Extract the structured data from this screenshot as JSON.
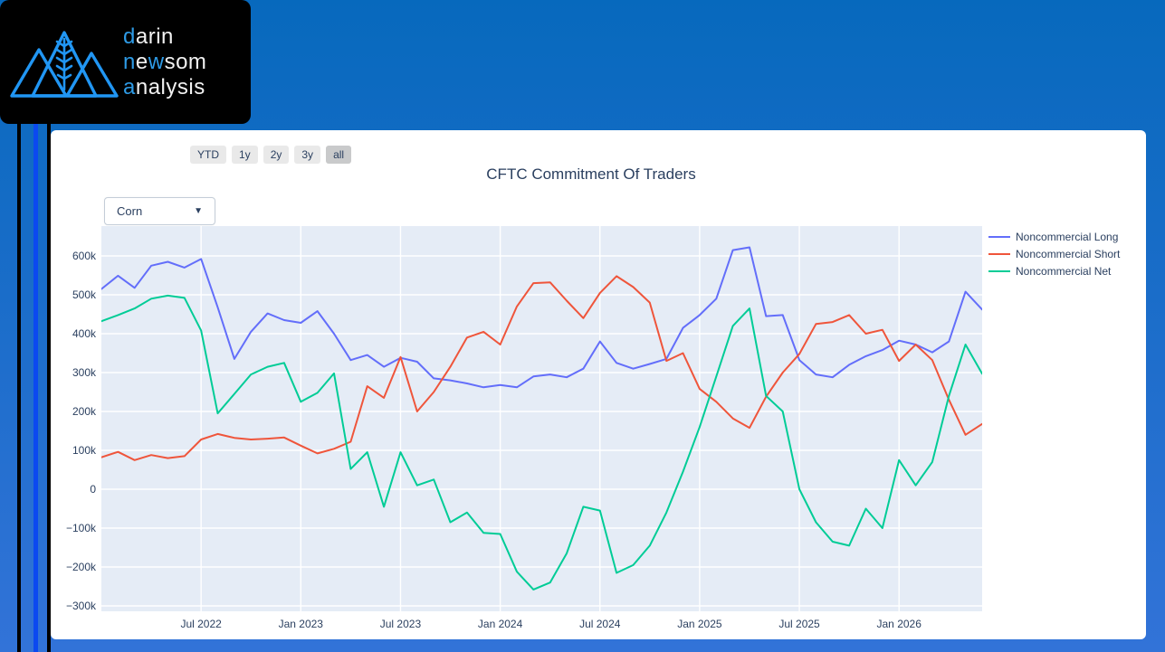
{
  "page": {
    "background_top": "#0769bd",
    "background_bottom": "#3273d8",
    "accent_stripe": "#0b49f0"
  },
  "logo": {
    "lines": [
      {
        "segments": [
          {
            "text": "d",
            "cls": "accent"
          },
          {
            "text": "arin",
            "cls": "white"
          }
        ]
      },
      {
        "segments": [
          {
            "text": "n",
            "cls": "accent"
          },
          {
            "text": "e",
            "cls": "white"
          },
          {
            "text": "w",
            "cls": "accent"
          },
          {
            "text": "som",
            "cls": "white"
          }
        ]
      },
      {
        "segments": [
          {
            "text": "a",
            "cls": "accent"
          },
          {
            "text": "nalysis",
            "cls": "white"
          }
        ]
      }
    ],
    "mark_color": "#2196f3"
  },
  "range_selector": {
    "buttons": [
      "YTD",
      "1y",
      "2y",
      "3y",
      "all"
    ],
    "active_index": 4
  },
  "dropdown": {
    "value": "Corn",
    "arrow": "▼"
  },
  "chart_data": {
    "type": "line",
    "title": "CFTC Commitment Of Traders",
    "xlabel": "",
    "ylabel": "",
    "grid": true,
    "legend_position": "right",
    "plot_bg": "#e5ecf6",
    "text_color": "#2a3f5f",
    "ylim": [
      -314,
      677
    ],
    "x_months": [
      "2022-01",
      "2022-02",
      "2022-03",
      "2022-04",
      "2022-05",
      "2022-06",
      "2022-07",
      "2022-08",
      "2022-09",
      "2022-10",
      "2022-11",
      "2022-12",
      "2023-01",
      "2023-02",
      "2023-03",
      "2023-04",
      "2023-05",
      "2023-06",
      "2023-07",
      "2023-08",
      "2023-09",
      "2023-10",
      "2023-11",
      "2023-12",
      "2024-01",
      "2024-02",
      "2024-03",
      "2024-04",
      "2024-05",
      "2024-06",
      "2024-07",
      "2024-08",
      "2024-09",
      "2024-10",
      "2024-11",
      "2024-12",
      "2025-01",
      "2025-02",
      "2025-03",
      "2025-04",
      "2025-05",
      "2025-06",
      "2025-07",
      "2025-08",
      "2025-09",
      "2025-10",
      "2025-11",
      "2025-12",
      "2026-01",
      "2026-02",
      "2026-03",
      "2026-04",
      "2026-05",
      "2026-06"
    ],
    "x_ticks": [
      {
        "label": "Jul 2022",
        "month_index": 6
      },
      {
        "label": "Jan 2023",
        "month_index": 12
      },
      {
        "label": "Jul 2023",
        "month_index": 18
      },
      {
        "label": "Jan 2024",
        "month_index": 24
      },
      {
        "label": "Jul 2024",
        "month_index": 30
      },
      {
        "label": "Jan 2025",
        "month_index": 36
      },
      {
        "label": "Jul 2025",
        "month_index": 42
      },
      {
        "label": "Jan 2026",
        "month_index": 48
      }
    ],
    "y_ticks": [
      {
        "label": "600k",
        "value": 600
      },
      {
        "label": "500k",
        "value": 500
      },
      {
        "label": "400k",
        "value": 400
      },
      {
        "label": "300k",
        "value": 300
      },
      {
        "label": "200k",
        "value": 200
      },
      {
        "label": "100k",
        "value": 100
      },
      {
        "label": "0",
        "value": 0
      },
      {
        "label": "−100k",
        "value": -100
      },
      {
        "label": "−200k",
        "value": -200
      },
      {
        "label": "−300k",
        "value": -300
      }
    ],
    "value_unit": "thousand contracts",
    "series": [
      {
        "name": "Noncommercial Long",
        "color": "#636efa",
        "values": [
          515,
          549,
          518,
          575,
          585,
          570,
          592,
          468,
          335,
          405,
          452,
          435,
          428,
          458,
          400,
          332,
          345,
          315,
          338,
          328,
          285,
          280,
          272,
          262,
          268,
          262,
          290,
          295,
          288,
          310,
          380,
          325,
          310,
          322,
          335,
          415,
          448,
          490,
          615,
          622,
          445,
          448,
          332,
          295,
          288,
          320,
          342,
          358,
          382,
          372,
          352,
          380,
          508,
          462
        ]
      },
      {
        "name": "Noncommercial Short",
        "color": "#ef553b",
        "values": [
          82,
          96,
          75,
          88,
          80,
          85,
          128,
          142,
          132,
          128,
          130,
          133,
          112,
          92,
          104,
          122,
          265,
          235,
          340,
          200,
          250,
          315,
          390,
          405,
          372,
          470,
          530,
          532,
          485,
          440,
          505,
          548,
          520,
          480,
          330,
          350,
          258,
          225,
          182,
          158,
          238,
          300,
          348,
          425,
          430,
          448,
          400,
          410,
          330,
          372,
          332,
          230,
          140,
          168
        ]
      },
      {
        "name": "Noncommercial Net",
        "color": "#00cc96",
        "values": [
          432,
          448,
          465,
          490,
          498,
          492,
          408,
          195,
          245,
          295,
          315,
          325,
          225,
          248,
          298,
          52,
          95,
          -45,
          95,
          10,
          25,
          -85,
          -60,
          -112,
          -115,
          -212,
          -258,
          -240,
          -165,
          -45,
          -55,
          -215,
          -195,
          -145,
          -60,
          45,
          160,
          290,
          420,
          465,
          240,
          200,
          0,
          -85,
          -135,
          -145,
          -50,
          -100,
          75,
          10,
          70,
          240,
          372,
          297
        ]
      }
    ]
  }
}
